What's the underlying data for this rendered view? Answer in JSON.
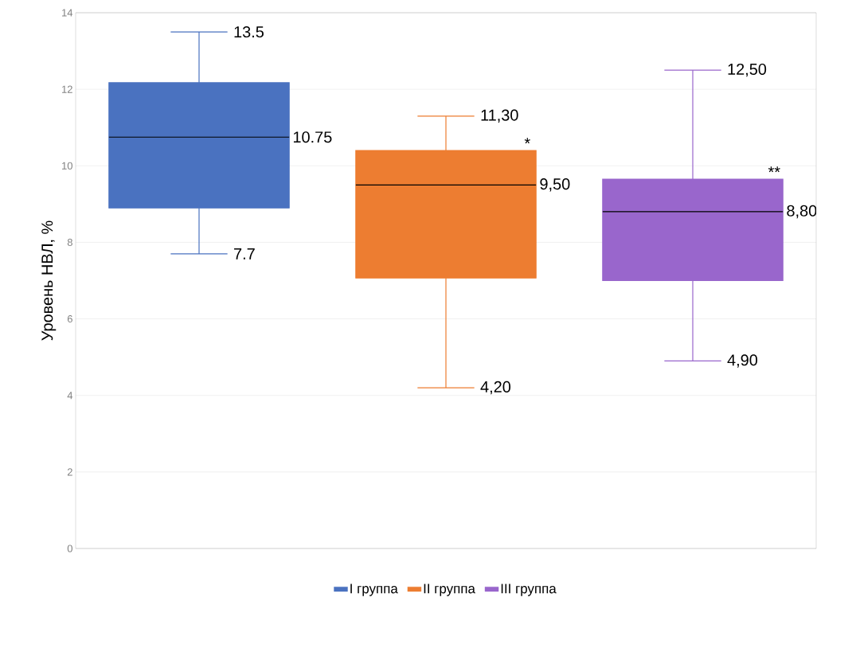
{
  "chart_data": {
    "type": "box",
    "ylabel": "Уровень НВЛ, %",
    "categories": [
      null,
      null,
      null
    ],
    "series": [
      {
        "name": "I группа",
        "color": "#4a72c0",
        "boxes": [
          {
            "low": 7.7,
            "q1": 8.9,
            "median": 10.75,
            "q3": 12.17,
            "high": 13.5
          },
          null,
          null
        ]
      },
      {
        "name": "II группа",
        "color": "#ed7d31",
        "boxes": [
          null,
          {
            "low": 4.2,
            "q1": 7.07,
            "median": 9.5,
            "q3": 10.4,
            "high": 11.3
          },
          null
        ]
      },
      {
        "name": "III группа",
        "color": "#9966cc",
        "boxes": [
          null,
          null,
          {
            "low": 4.9,
            "q1": 7.0,
            "median": 8.8,
            "q3": 9.65,
            "high": 12.5
          }
        ]
      }
    ],
    "ylim": [
      0,
      14
    ],
    "yticks": [
      0,
      2,
      4,
      6,
      8,
      10,
      12,
      14
    ],
    "grid": "y",
    "legend": "bottom",
    "annotations": [
      "13.5",
      "10.75",
      "7.7",
      "11,30",
      "9,50",
      "4,20",
      "12,50",
      "8,80",
      "4,90",
      "*",
      "**"
    ]
  }
}
